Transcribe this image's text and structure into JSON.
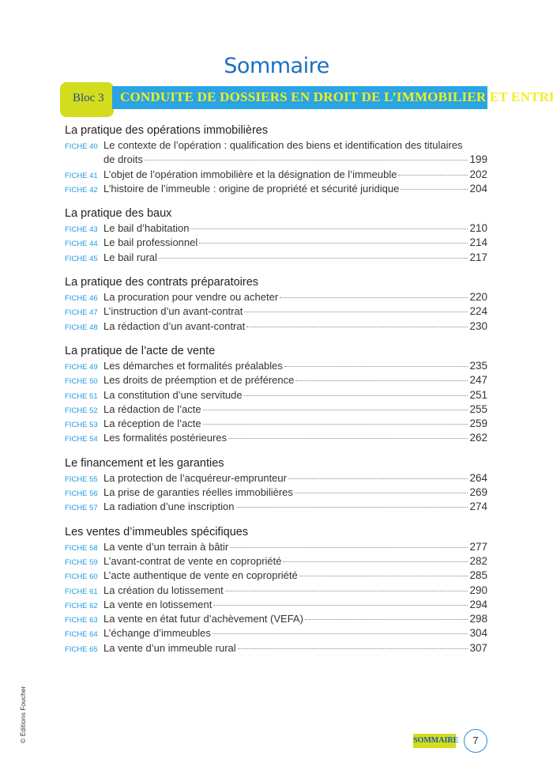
{
  "title": "Sommaire",
  "bloc": {
    "label": "Bloc 3",
    "heading": "CONDUITE DE DOSSIERS EN DROIT DE L’IMMOBILIER ET ENTREPRISE"
  },
  "sections": [
    {
      "heading": "La pratique des opérations immobilières",
      "items": [
        {
          "fiche": "FICHE 40",
          "title": "Le contexte de l’opération : qualification des biens et identification des titulaires",
          "title_cont": "de droits",
          "page": "199"
        },
        {
          "fiche": "FICHE 41",
          "title": "L’objet de l’opération immobilière et la désignation de l’immeuble",
          "page": "202"
        },
        {
          "fiche": "FICHE 42",
          "title": "L’histoire de l’immeuble : origine de propriété et sécurité juridique",
          "page": "204"
        }
      ]
    },
    {
      "heading": "La pratique des baux",
      "items": [
        {
          "fiche": "FICHE 43",
          "title": "Le bail d’habitation",
          "page": "210"
        },
        {
          "fiche": "FICHE 44",
          "title": "Le bail professionnel",
          "page": "214"
        },
        {
          "fiche": "FICHE 45",
          "title": "Le bail rural",
          "page": "217"
        }
      ]
    },
    {
      "heading": "La pratique des contrats préparatoires",
      "items": [
        {
          "fiche": "FICHE 46",
          "title": "La procuration pour vendre ou acheter",
          "page": "220"
        },
        {
          "fiche": "FICHE 47",
          "title": "L’instruction d’un avant-contrat",
          "page": "224"
        },
        {
          "fiche": "FICHE 48",
          "title": "La rédaction d’un avant-contrat",
          "page": "230"
        }
      ]
    },
    {
      "heading": "La pratique de l’acte de vente",
      "items": [
        {
          "fiche": "FICHE 49",
          "title": "Les démarches et formalités préalables",
          "page": "235"
        },
        {
          "fiche": "FICHE 50",
          "title": "Les droits de préemption et de préférence",
          "page": "247"
        },
        {
          "fiche": "FICHE 51",
          "title": "La constitution d’une servitude",
          "page": "251"
        },
        {
          "fiche": "FICHE 52",
          "title": "La rédaction de l’acte",
          "page": "255"
        },
        {
          "fiche": "FICHE 53",
          "title": "La réception de l’acte",
          "page": "259"
        },
        {
          "fiche": "FICHE 54",
          "title": "Les formalités postérieures",
          "page": "262"
        }
      ]
    },
    {
      "heading": "Le financement et les garanties",
      "items": [
        {
          "fiche": "FICHE 55",
          "title": "La protection de l’acquéreur-emprunteur",
          "page": "264"
        },
        {
          "fiche": "FICHE 56",
          "title": "La prise de garanties réelles immobilières",
          "page": "269"
        },
        {
          "fiche": "FICHE 57",
          "title": "La radiation d’une inscription",
          "page": "274"
        }
      ]
    },
    {
      "heading": "Les ventes d’immeubles spécifiques",
      "items": [
        {
          "fiche": "FICHE 58",
          "title": "La vente d’un terrain à bâtir",
          "page": "277"
        },
        {
          "fiche": "FICHE 59",
          "title": "L’avant-contrat de vente en copropriété",
          "page": "282"
        },
        {
          "fiche": "FICHE 60",
          "title": "L’acte authentique de vente en copropriété",
          "page": "285"
        },
        {
          "fiche": "FICHE 61",
          "title": "La création du lotissement",
          "page": "290"
        },
        {
          "fiche": "FICHE 62",
          "title": "La vente en lotissement",
          "page": "294"
        },
        {
          "fiche": "FICHE 63",
          "title": "La vente en état futur d’achèvement (VEFA)",
          "page": "298"
        },
        {
          "fiche": "FICHE 64",
          "title": "L’échange d’immeubles",
          "page": "304"
        },
        {
          "fiche": "FICHE 65",
          "title": "La vente d’un immeuble rural",
          "page": "307"
        }
      ]
    }
  ],
  "footer": {
    "copyright": "© Éditions Foucher",
    "tag": "SOMMAIRE",
    "page_number": "7"
  }
}
